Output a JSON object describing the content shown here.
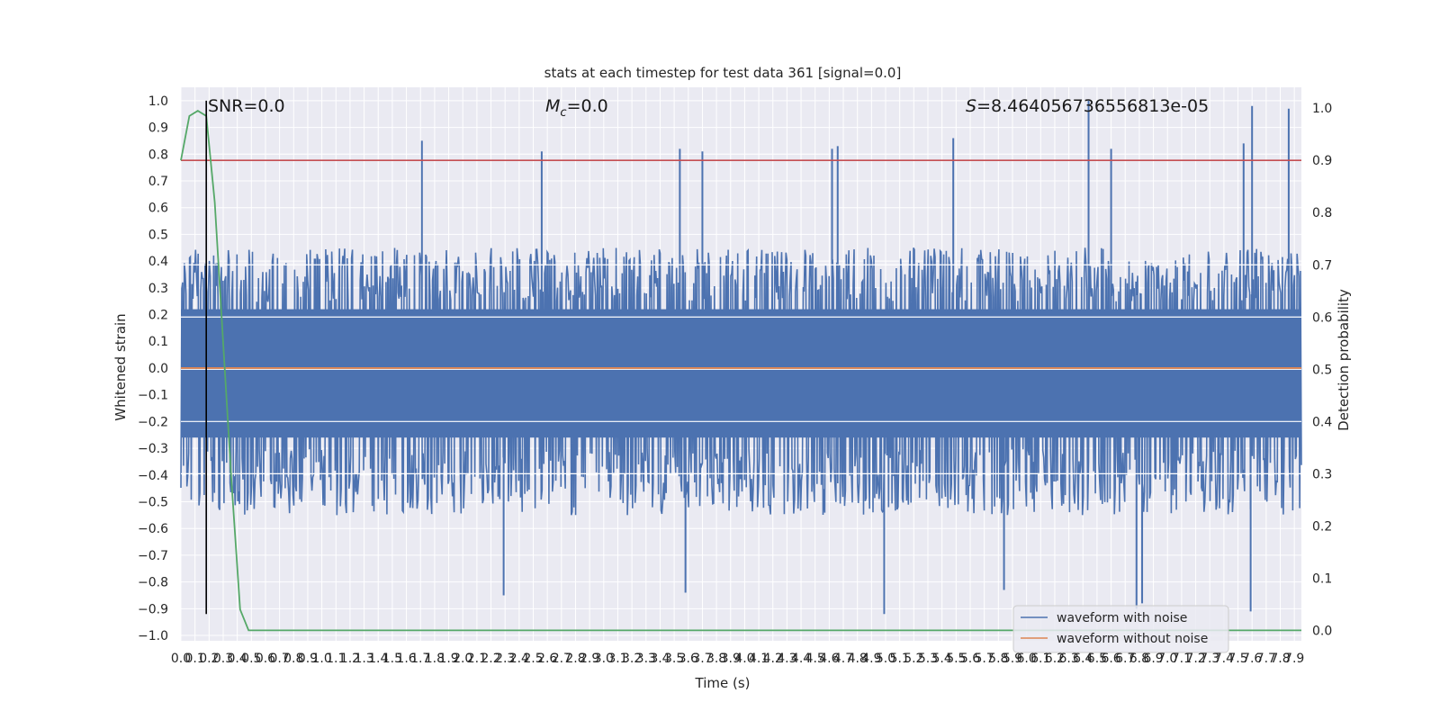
{
  "chart_data": {
    "type": "line",
    "title": "stats at each timestep for test data 361 [signal=0.0]",
    "xlabel": "Time (s)",
    "ylabel": "Whitened strain",
    "ylabel_right": "Detection probability",
    "xlim": [
      0.0,
      7.95
    ],
    "ylim": [
      -1.02,
      1.05
    ],
    "ylim_right": [
      -0.02,
      1.04
    ],
    "x_ticks": [
      "0.0",
      "0.1",
      "0.2",
      "0.3",
      "0.4",
      "0.5",
      "0.6",
      "0.7",
      "0.8",
      "0.9",
      "1.0",
      "1.1",
      "1.2",
      "1.3",
      "1.4",
      "1.5",
      "1.6",
      "1.7",
      "1.8",
      "1.9",
      "2.0",
      "2.1",
      "2.2",
      "2.3",
      "2.4",
      "2.5",
      "2.6",
      "2.7",
      "2.8",
      "2.9",
      "3.0",
      "3.1",
      "3.2",
      "3.3",
      "3.4",
      "3.5",
      "3.6",
      "3.7",
      "3.8",
      "3.9",
      "4.0",
      "4.1",
      "4.2",
      "4.3",
      "4.4",
      "4.5",
      "4.6",
      "4.7",
      "4.8",
      "4.9",
      "5.0",
      "5.1",
      "5.2",
      "5.3",
      "5.4",
      "5.5",
      "5.6",
      "5.7",
      "5.8",
      "5.9",
      "6.0",
      "6.1",
      "6.2",
      "6.3",
      "6.4",
      "6.5",
      "6.6",
      "6.7",
      "6.8",
      "6.9",
      "7.0",
      "7.1",
      "7.2",
      "7.3",
      "7.4",
      "7.5",
      "7.6",
      "7.7",
      "7.8",
      "7.9"
    ],
    "y_ticks": [
      "-1.0",
      "-0.9",
      "-0.8",
      "-0.7",
      "-0.6",
      "-0.5",
      "-0.4",
      "-0.3",
      "-0.2",
      "-0.1",
      "0.0",
      "0.1",
      "0.2",
      "0.3",
      "0.4",
      "0.5",
      "0.6",
      "0.7",
      "0.8",
      "0.9",
      "1.0"
    ],
    "y_ticks_right": [
      "0.0",
      "0.1",
      "0.2",
      "0.3",
      "0.4",
      "0.5",
      "0.6",
      "0.7",
      "0.8",
      "0.9",
      "1.0"
    ],
    "grid": true,
    "legend_position": "lower-right",
    "annotations": {
      "snr": "SNR=0.0",
      "mc_symbol": "M",
      "mc_subscript": "c",
      "mc_value": "=0.0",
      "s_symbol": "S",
      "s_value": "=8.464056736556813e-05"
    },
    "series": [
      {
        "name": "waveform with noise",
        "color": "#4c72b0",
        "description_visible": "dense noise band",
        "typical_range": [
          -0.55,
          0.45
        ],
        "peaks_high": [
          [
            1.71,
            0.85
          ],
          [
            2.56,
            0.81
          ],
          [
            3.54,
            0.82
          ],
          [
            3.7,
            0.81
          ],
          [
            4.62,
            0.82
          ],
          [
            4.66,
            0.83
          ],
          [
            5.48,
            0.86
          ],
          [
            6.44,
            1.0
          ],
          [
            6.6,
            0.82
          ],
          [
            7.54,
            0.84
          ],
          [
            7.6,
            0.98
          ],
          [
            7.86,
            0.97
          ]
        ],
        "peaks_low": [
          [
            4.99,
            -0.92
          ],
          [
            6.78,
            -0.9
          ],
          [
            6.82,
            -0.88
          ],
          [
            7.59,
            -0.91
          ],
          [
            2.29,
            -0.85
          ],
          [
            3.58,
            -0.84
          ],
          [
            5.84,
            -0.83
          ]
        ]
      },
      {
        "name": "waveform without noise",
        "color": "#dd8452",
        "x": [
          0.0,
          7.95
        ],
        "y": [
          0.0,
          0.0
        ]
      },
      {
        "name": "detection probability",
        "color": "#55a868",
        "axis": "right",
        "x": [
          0.0,
          0.06,
          0.12,
          0.18,
          0.24,
          0.3,
          0.36,
          0.42,
          0.48,
          0.5,
          7.95
        ],
        "y": [
          0.9,
          0.985,
          0.995,
          0.985,
          0.82,
          0.55,
          0.28,
          0.04,
          0.0,
          0.0,
          0.0
        ]
      }
    ],
    "threshold_line": {
      "color": "#c44e52",
      "axis": "right",
      "value": 0.9
    },
    "marker_line": {
      "color": "#000000",
      "x": 0.18,
      "y_range": [
        -0.92,
        1.0
      ]
    },
    "white_hlines_right": [
      0.3,
      0.4,
      0.5,
      0.6,
      0.7
    ]
  }
}
